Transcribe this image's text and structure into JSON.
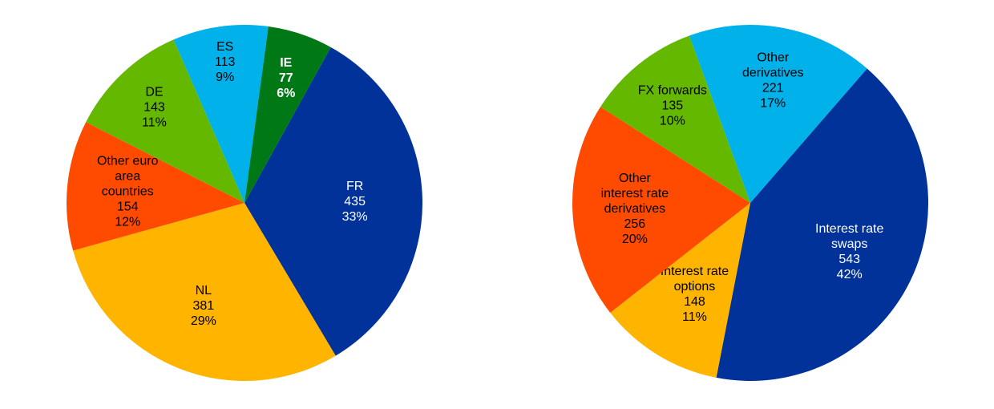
{
  "chart_data": [
    {
      "type": "pie",
      "title": "",
      "start_angle_deg": 29,
      "direction": "clockwise",
      "slices": [
        {
          "label": [
            "FR"
          ],
          "value": 435,
          "percent": "33%",
          "color": "#003299",
          "text_color": "#ffffff",
          "bold": false
        },
        {
          "label": [
            "NL"
          ],
          "value": 381,
          "percent": "29%",
          "color": "#FFB400",
          "text_color": "#000000",
          "bold": false
        },
        {
          "label": [
            "Other euro",
            "area",
            "countries"
          ],
          "value": 154,
          "percent": "12%",
          "color": "#FF4B00",
          "text_color": "#000000",
          "bold": false
        },
        {
          "label": [
            "DE"
          ],
          "value": 143,
          "percent": "11%",
          "color": "#65B800",
          "text_color": "#000000",
          "bold": false
        },
        {
          "label": [
            "ES"
          ],
          "value": 113,
          "percent": "9%",
          "color": "#00B1EA",
          "text_color": "#000000",
          "bold": false
        },
        {
          "label": [
            "IE"
          ],
          "value": 77,
          "percent": "6%",
          "color": "#007816",
          "text_color": "#ffffff",
          "bold": true
        }
      ]
    },
    {
      "type": "pie",
      "title": "",
      "start_angle_deg": 41,
      "direction": "clockwise",
      "slices": [
        {
          "label": [
            "Interest rate",
            "swaps"
          ],
          "value": 543,
          "percent": "42%",
          "color": "#003299",
          "text_color": "#ffffff",
          "bold": false
        },
        {
          "label": [
            "Interest rate",
            "options"
          ],
          "value": 148,
          "percent": "11%",
          "color": "#FFB400",
          "text_color": "#000000",
          "bold": false
        },
        {
          "label": [
            "Other",
            "interest rate",
            "derivatives"
          ],
          "value": 256,
          "percent": "20%",
          "color": "#FF4B00",
          "text_color": "#000000",
          "bold": false
        },
        {
          "label": [
            "FX forwards"
          ],
          "value": 135,
          "percent": "10%",
          "color": "#65B800",
          "text_color": "#000000",
          "bold": false
        },
        {
          "label": [
            "Other",
            "derivatives"
          ],
          "value": 221,
          "percent": "17%",
          "color": "#00B1EA",
          "text_color": "#000000",
          "bold": false
        }
      ]
    }
  ]
}
